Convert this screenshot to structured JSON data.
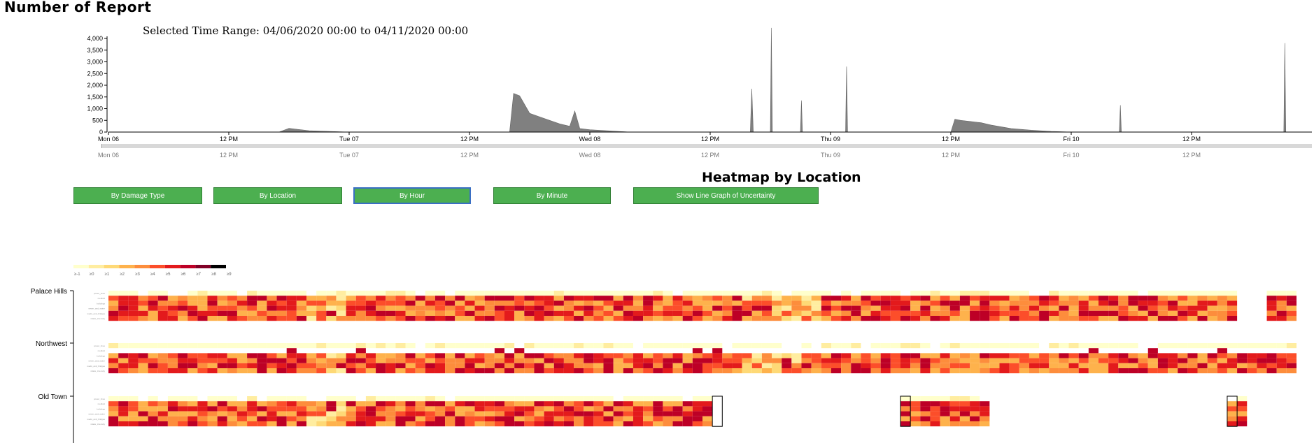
{
  "page": {
    "title": "Number of Report",
    "time_range_label": "Selected Time Range: 04/06/2020 00:00 to 04/11/2020 00:00",
    "heatmap_title": "Heatmap by Location"
  },
  "buttons": [
    {
      "label": "By Damage Type",
      "active": false
    },
    {
      "label": "By Location",
      "active": false
    },
    {
      "label": "By Hour",
      "active": true
    },
    {
      "label": "By Minute",
      "active": false
    },
    {
      "label": "Show Line Graph of Uncertainty",
      "active": false
    }
  ],
  "colors": {
    "area": "#808080",
    "button": "#4caf50",
    "heat_scale": [
      "#ffffcc",
      "#ffeda0",
      "#fed976",
      "#feb24c",
      "#fd8d3c",
      "#fc4e2a",
      "#e31a1c",
      "#bd0026",
      "#800026",
      "#000000"
    ]
  },
  "chart_data": [
    {
      "type": "area",
      "title": "Number of Report",
      "ylim": [
        0,
        4000
      ],
      "y_ticks": [
        "0",
        "500",
        "1,000",
        "1,500",
        "2,000",
        "2,500",
        "3,000",
        "3,500",
        "4,000"
      ],
      "x_ticks": [
        "Mon 06",
        "12 PM",
        "Tue 07",
        "12 PM",
        "Wed 08",
        "12 PM",
        "Thu 09",
        "12 PM",
        "Fri 10",
        "12 PM"
      ],
      "x_range_hours": [
        0,
        120
      ],
      "series": [
        {
          "x": [
            0,
            17,
            18,
            20,
            24,
            40,
            40.4,
            41,
            42,
            43,
            44,
            45,
            46,
            46.5,
            47,
            48,
            50,
            52,
            60,
            64,
            64.15,
            64.3,
            66,
            66.1,
            66.2,
            69,
            69.1,
            69.2,
            73.5,
            73.6,
            73.7,
            84,
            84.4,
            85,
            86,
            87,
            88,
            90,
            92,
            94,
            96,
            98,
            100.8,
            100.9,
            101,
            112,
            117.2,
            117.3,
            117.4,
            120
          ],
          "values": [
            0,
            0,
            160,
            60,
            0,
            0,
            1650,
            1550,
            800,
            650,
            500,
            350,
            250,
            900,
            150,
            100,
            50,
            0,
            0,
            0,
            1850,
            0,
            0,
            4450,
            0,
            0,
            1350,
            0,
            0,
            2800,
            0,
            0,
            550,
            500,
            450,
            400,
            300,
            150,
            80,
            30,
            0,
            0,
            0,
            1150,
            0,
            0,
            0,
            3800,
            0,
            0
          ]
        }
      ]
    },
    {
      "type": "heatmap",
      "title": "Heatmap by Location",
      "legend_ticks": [
        "≥-1",
        "≥0",
        "≥1",
        "≥2",
        "≥3",
        "≥4",
        "≥5",
        "≥6",
        "≥7",
        "≥8",
        "≥9"
      ],
      "rows": [
        "Palace Hills",
        "Northwest",
        "Old Town"
      ],
      "sub_rows": [
        "power_lines",
        "medical",
        "buildings",
        "sewer_and_water",
        "roads_and_bridges",
        "shake_intensity"
      ]
    }
  ]
}
